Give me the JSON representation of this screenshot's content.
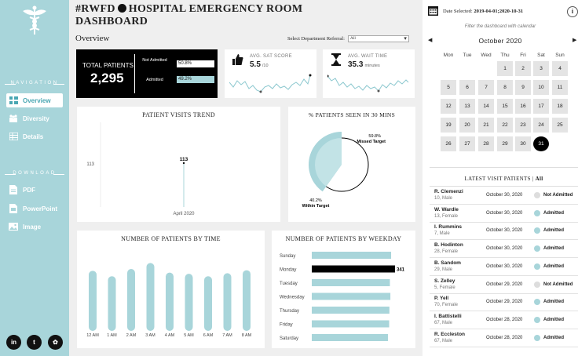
{
  "title": {
    "part1": "#RWFD",
    "part2": "HOSPITAL EMERGENCY ROOM DASHBOARD"
  },
  "overview_label": "Overview",
  "department": {
    "label": "Select Department Referral:",
    "value": "All"
  },
  "nav": {
    "navigation_heading": "NAVIGATION",
    "download_heading": "DOWNLOAD",
    "items": [
      {
        "label": "Overview",
        "icon": "overview-icon",
        "active": true
      },
      {
        "label": "Diversity",
        "icon": "diversity-icon",
        "active": false
      },
      {
        "label": "Details",
        "icon": "details-icon",
        "active": false
      }
    ],
    "downloads": [
      {
        "label": "PDF",
        "icon": "pdf-icon"
      },
      {
        "label": "PowerPoint",
        "icon": "powerpoint-icon"
      },
      {
        "label": "Image",
        "icon": "image-icon"
      }
    ],
    "social": [
      "in",
      "t",
      "✿"
    ]
  },
  "kpi": {
    "total_label": "TOTAL PATIENTS",
    "total_value": "2,295",
    "not_admitted_label": "Not Admitted",
    "not_admitted_pct": "50.8%",
    "admitted_label": "Admitted",
    "admitted_pct": "49.2%",
    "sat_label": "AVG. SAT SCORE",
    "sat_value": "5.5",
    "sat_unit": "/10",
    "wait_label": "AVG. WAIT TIME",
    "wait_value": "35.3",
    "wait_unit": "minutes"
  },
  "colors": {
    "accent": "#a8d5da",
    "sidebar": "#a8d5da",
    "highlight": "#000000"
  },
  "chart_data": [
    {
      "type": "line",
      "title": "PATIENT VISITS TREND",
      "x": [
        "April 2020"
      ],
      "values": [
        113
      ],
      "ytick": "113",
      "data_label": "113"
    },
    {
      "type": "pie",
      "title": "% PATIENTS SEEN IN 30 MINS",
      "slices": [
        {
          "label": "Missed Target",
          "pct_label": "59.8%",
          "value": 59.8
        },
        {
          "label": "Within Target",
          "pct_label": "40.2%",
          "value": 40.2
        }
      ]
    },
    {
      "type": "bar",
      "title": "NUMBER OF PATIENTS BY TIME",
      "categories": [
        "12 AM",
        "1 AM",
        "2 AM",
        "3 AM",
        "4 AM",
        "5 AM",
        "6 AM",
        "7 AM",
        "8 AM"
      ],
      "values": [
        100,
        91,
        103,
        113,
        97,
        95,
        91,
        96,
        101
      ],
      "ylim": [
        0,
        120
      ]
    },
    {
      "type": "bar",
      "orientation": "horizontal",
      "title": "NUMBER OF PATIENTS BY WEEKDAY",
      "categories": [
        "Sunday",
        "Monday",
        "Tuesday",
        "Wednesday",
        "Thursday",
        "Friday",
        "Saturday"
      ],
      "values": [
        325,
        341,
        320,
        322,
        318,
        317,
        312
      ],
      "highlight": "Monday",
      "data_label": "341"
    }
  ],
  "calendar": {
    "date_selected_label": "Date Selected:",
    "date_selected_value": "2019-04-01;2020-10-31",
    "info": "i",
    "filter_hint": "Filter the dashboard with calendar",
    "prev": "◀",
    "next": "▶",
    "month": "October 2020",
    "dow": [
      "Mon",
      "Tue",
      "Wed",
      "Thu",
      "Fri",
      "Sat",
      "Sun"
    ],
    "first_weekday": 3,
    "days": 31,
    "selected": 31
  },
  "latest": {
    "title": "LATEST VISIT PATIENTS |",
    "filter": "All",
    "patients": [
      {
        "name": "R. Clemenzi",
        "info": "10, Male",
        "date": "October 30, 2020",
        "status": "Not Admitted"
      },
      {
        "name": "W. Wardle",
        "info": "13, Female",
        "date": "October 30, 2020",
        "status": "Admitted"
      },
      {
        "name": "I. Rummins",
        "info": "7, Male",
        "date": "October 30, 2020",
        "status": "Admitted"
      },
      {
        "name": "B. Hodinton",
        "info": "28, Female",
        "date": "October 30, 2020",
        "status": "Admitted"
      },
      {
        "name": "B. Sandom",
        "info": "29, Male",
        "date": "October 30, 2020",
        "status": "Admitted"
      },
      {
        "name": "S. Zelley",
        "info": "5, Female",
        "date": "October 29, 2020",
        "status": "Not Admitted"
      },
      {
        "name": "P. Yell",
        "info": "70, Female",
        "date": "October 29, 2020",
        "status": "Admitted"
      },
      {
        "name": "I. Battistelli",
        "info": "67, Male",
        "date": "October 28, 2020",
        "status": "Admitted"
      },
      {
        "name": "R. Eccleston",
        "info": "67, Male",
        "date": "October 28, 2020",
        "status": "Admitted"
      }
    ]
  }
}
